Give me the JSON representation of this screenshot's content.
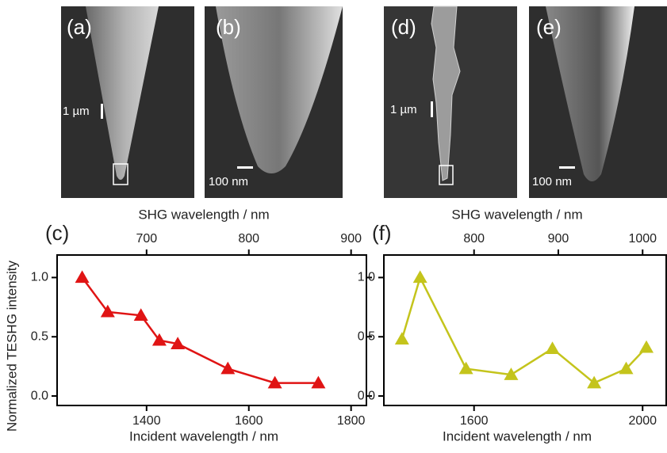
{
  "images": [
    {
      "label": "(a)",
      "scale_bar": "1 µm"
    },
    {
      "label": "(b)",
      "scale_bar": "100 nm"
    },
    {
      "label": "(d)",
      "scale_bar": "1 µm"
    },
    {
      "label": "(e)",
      "scale_bar": "100 nm"
    }
  ],
  "chart_data": [
    {
      "type": "line",
      "panel_label": "(c)",
      "x_label": "Incident wavelength / nm",
      "x2_label": "SHG wavelength / nm",
      "y_label": "Normalized TESHG intensity",
      "x": [
        1274,
        1324,
        1389,
        1425,
        1461,
        1559,
        1651,
        1736
      ],
      "values": [
        1.0,
        0.71,
        0.68,
        0.47,
        0.44,
        0.23,
        0.11,
        0.11
      ],
      "color": "#e01414",
      "marker": "triangle",
      "xlim": [
        1225,
        1830
      ],
      "xticks": [
        1400,
        1600,
        1800
      ],
      "x2lim": [
        612.5,
        915
      ],
      "x2ticks": [
        700,
        800,
        900
      ],
      "ylim": [
        -0.08,
        1.19
      ],
      "yticks": [
        {
          "value": 0,
          "label": "0.0"
        },
        0.5,
        {
          "value": 1,
          "label": "1.0"
        }
      ]
    },
    {
      "type": "line",
      "panel_label": "(f)",
      "x_label": "Incident wavelength / nm",
      "x2_label": "SHG wavelength / nm",
      "x": [
        1429,
        1472,
        1581,
        1688,
        1786,
        1885,
        1961,
        2009
      ],
      "values": [
        0.48,
        1.0,
        0.23,
        0.18,
        0.4,
        0.11,
        0.23,
        0.41
      ],
      "color": "#c4c41c",
      "marker": "triangle",
      "xlim": [
        1386,
        2056
      ],
      "xticks": [
        1600,
        2000
      ],
      "x2lim": [
        693,
        1028
      ],
      "x2ticks": [
        800,
        900,
        1000
      ],
      "ylim": [
        -0.08,
        1.19
      ],
      "yticks": [
        {
          "value": 0,
          "label": "0.0"
        },
        0.5,
        {
          "value": 1,
          "label": "1.0"
        }
      ]
    }
  ]
}
